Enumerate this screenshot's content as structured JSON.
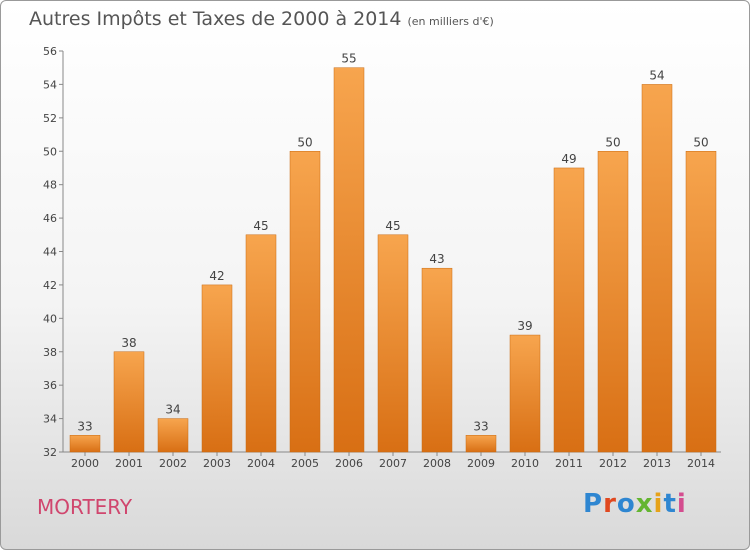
{
  "chart_data": {
    "type": "bar",
    "title": "Autres Impôts et Taxes de 2000 à 2014",
    "unit_label": "(en milliers d'€)",
    "categories": [
      "2000",
      "2001",
      "2002",
      "2003",
      "2004",
      "2005",
      "2006",
      "2007",
      "2008",
      "2009",
      "2010",
      "2011",
      "2012",
      "2013",
      "2014"
    ],
    "values": [
      33,
      38,
      34,
      42,
      45,
      50,
      55,
      45,
      43,
      33,
      39,
      49,
      50,
      54,
      50
    ],
    "ylim": [
      32,
      56
    ],
    "yticks": [
      32,
      34,
      36,
      38,
      40,
      42,
      44,
      46,
      48,
      50,
      52,
      54,
      56
    ],
    "grid": false,
    "bar_color": "#f0902e"
  },
  "commune": "MORTERY",
  "logo": {
    "text": "Proxiti"
  }
}
